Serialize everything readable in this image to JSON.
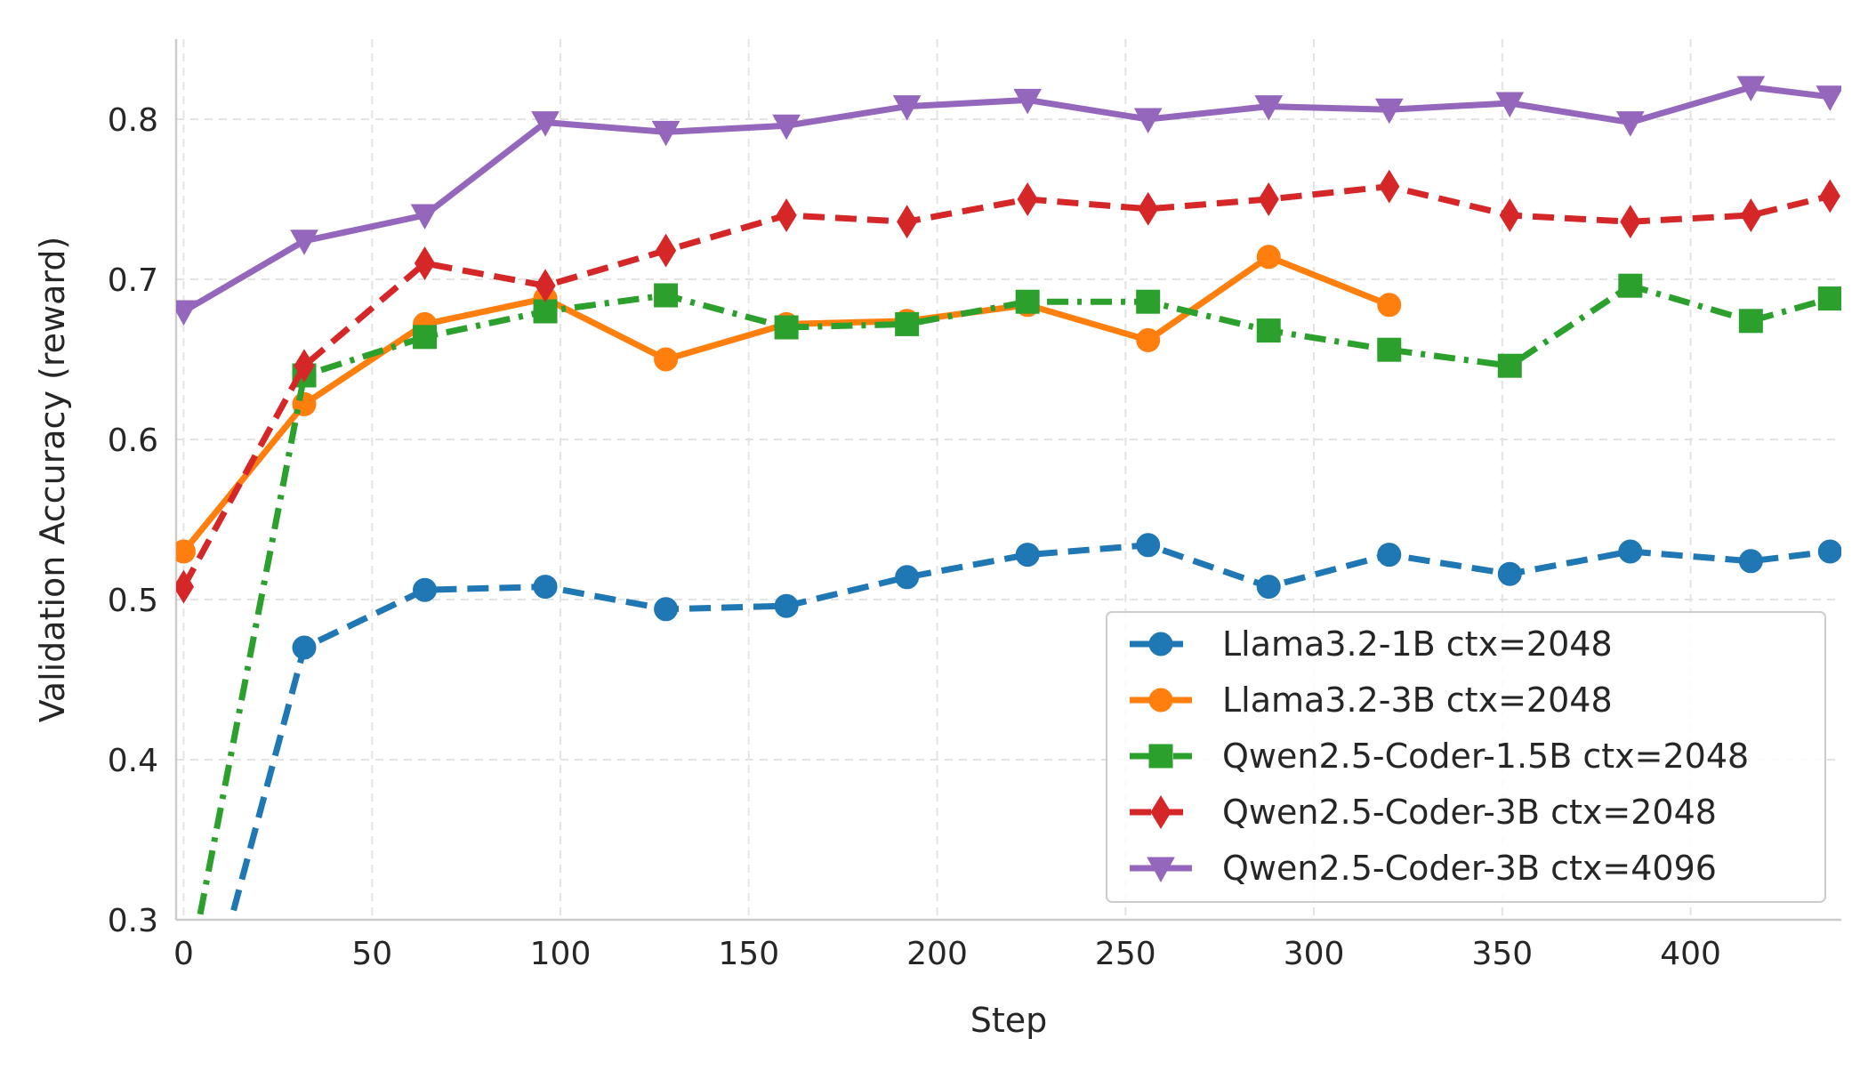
{
  "chart_data": {
    "type": "line",
    "title": "",
    "xlabel": "Step",
    "ylabel": "Validation Accuracy (reward)",
    "xlim": [
      -2,
      440
    ],
    "ylim": [
      0.3,
      0.85
    ],
    "xticks": [
      0,
      50,
      100,
      150,
      200,
      250,
      300,
      350,
      400
    ],
    "xtick_labels": [
      "0",
      "50",
      "100",
      "150",
      "200",
      "250",
      "300",
      "350",
      "400"
    ],
    "yticks": [
      0.3,
      0.4,
      0.5,
      0.6,
      0.7,
      0.8
    ],
    "ytick_labels": [
      "0.3",
      "0.4",
      "0.5",
      "0.6",
      "0.7",
      "0.8"
    ],
    "grid": true,
    "legend_position": "lower-right",
    "series": [
      {
        "name": "Llama3.2-1B ctx=2048",
        "color": "#1f77b4",
        "marker": "circle",
        "linestyle": "dashed",
        "x": [
          0,
          32,
          64,
          96,
          128,
          160,
          192,
          224,
          256,
          288,
          320,
          352,
          384,
          416,
          437
        ],
        "y": [
          0.19,
          0.47,
          0.506,
          0.508,
          0.494,
          0.496,
          0.514,
          0.528,
          0.534,
          0.508,
          0.528,
          0.516,
          0.53,
          0.524,
          0.53
        ]
      },
      {
        "name": "Llama3.2-3B ctx=2048",
        "color": "#ff7f0e",
        "marker": "circle",
        "linestyle": "solid",
        "x": [
          0,
          32,
          64,
          96,
          128,
          160,
          192,
          224,
          256,
          288,
          320
        ],
        "y": [
          0.53,
          0.622,
          0.672,
          0.688,
          0.65,
          0.672,
          0.674,
          0.684,
          0.662,
          0.714,
          0.684
        ]
      },
      {
        "name": "Qwen2.5-Coder-1.5B ctx=2048",
        "color": "#2ca02c",
        "marker": "square",
        "linestyle": "dashdot",
        "x": [
          0,
          32,
          64,
          96,
          128,
          160,
          192,
          224,
          256,
          288,
          320,
          352,
          384,
          416,
          437
        ],
        "y": [
          0.25,
          0.64,
          0.664,
          0.68,
          0.69,
          0.67,
          0.672,
          0.686,
          0.686,
          0.668,
          0.656,
          0.646,
          0.696,
          0.674,
          0.688
        ]
      },
      {
        "name": "Qwen2.5-Coder-3B ctx=2048",
        "color": "#d62728",
        "marker": "diamond",
        "linestyle": "dashed",
        "x": [
          0,
          32,
          64,
          96,
          128,
          160,
          192,
          224,
          256,
          288,
          320,
          352,
          384,
          416,
          437
        ],
        "y": [
          0.508,
          0.646,
          0.71,
          0.696,
          0.718,
          0.74,
          0.736,
          0.75,
          0.744,
          0.75,
          0.758,
          0.74,
          0.736,
          0.74,
          0.752
        ]
      },
      {
        "name": "Qwen2.5-Coder-3B ctx=4096",
        "color": "#9467bd",
        "marker": "triangle-down",
        "linestyle": "solid",
        "x": [
          0,
          32,
          64,
          96,
          128,
          160,
          192,
          224,
          256,
          288,
          320,
          352,
          384,
          416,
          437
        ],
        "y": [
          0.68,
          0.724,
          0.74,
          0.798,
          0.792,
          0.796,
          0.808,
          0.812,
          0.8,
          0.808,
          0.806,
          0.81,
          0.798,
          0.82,
          0.814
        ]
      }
    ]
  }
}
